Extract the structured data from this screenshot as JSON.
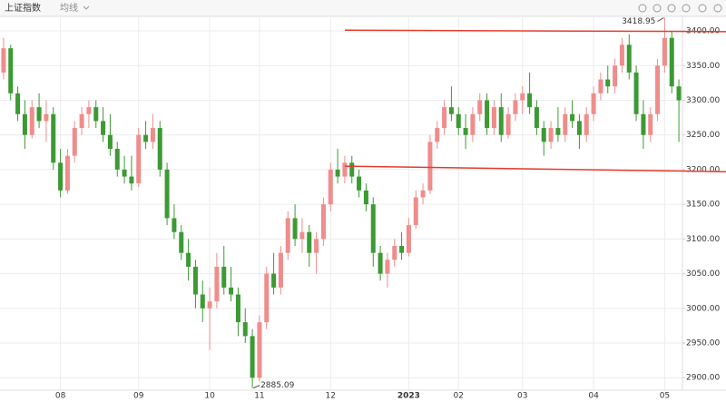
{
  "chart_data": {
    "type": "candlestick",
    "title": "上证指数",
    "indicator_menu": "均线",
    "up_color": "#f08c8c",
    "down_color": "#3c9a34",
    "grid": true,
    "ylim": [
      2882,
      3421
    ],
    "yticks": [
      {
        "value": 2900,
        "label": "2900.00"
      },
      {
        "value": 2950,
        "label": "2950.00"
      },
      {
        "value": 3000,
        "label": "3000.00"
      },
      {
        "value": 3050,
        "label": "3050.00"
      },
      {
        "value": 3100,
        "label": "3100.00"
      },
      {
        "value": 3150,
        "label": "3150.00"
      },
      {
        "value": 3200,
        "label": "3200.00"
      },
      {
        "value": 3250,
        "label": "3250.00"
      },
      {
        "value": 3300,
        "label": "3300.00"
      },
      {
        "value": 3350,
        "label": "3350.00"
      },
      {
        "value": 3400,
        "label": "3400.00"
      }
    ],
    "categories": [
      null,
      null,
      null,
      null,
      null,
      null,
      null,
      null,
      "08",
      null,
      null,
      null,
      null,
      null,
      null,
      null,
      null,
      null,
      null,
      "09",
      null,
      null,
      null,
      null,
      null,
      null,
      null,
      null,
      null,
      "10",
      null,
      null,
      null,
      null,
      null,
      null,
      "11",
      null,
      null,
      null,
      null,
      null,
      null,
      null,
      null,
      null,
      "12",
      null,
      null,
      null,
      null,
      null,
      null,
      null,
      null,
      null,
      null,
      "2023",
      null,
      null,
      null,
      null,
      null,
      null,
      "02",
      null,
      null,
      null,
      null,
      null,
      null,
      null,
      null,
      "03",
      null,
      null,
      null,
      null,
      null,
      null,
      null,
      null,
      null,
      "04",
      null,
      null,
      null,
      null,
      null,
      null,
      null,
      null,
      null,
      "05",
      null,
      null
    ],
    "series": [
      {
        "name": "上证指数",
        "values": [
          [
            3340,
            3390,
            3330,
            3375
          ],
          [
            3375,
            3380,
            3300,
            3310
          ],
          [
            3310,
            3320,
            3270,
            3280
          ],
          [
            3280,
            3300,
            3230,
            3250
          ],
          [
            3250,
            3300,
            3245,
            3290
          ],
          [
            3290,
            3310,
            3260,
            3270
          ],
          [
            3270,
            3300,
            3240,
            3280
          ],
          [
            3280,
            3290,
            3200,
            3210
          ],
          [
            3210,
            3230,
            3160,
            3170
          ],
          [
            3170,
            3230,
            3165,
            3220
          ],
          [
            3220,
            3270,
            3210,
            3260
          ],
          [
            3260,
            3290,
            3250,
            3280
          ],
          [
            3280,
            3300,
            3260,
            3290
          ],
          [
            3290,
            3300,
            3260,
            3270
          ],
          [
            3270,
            3290,
            3240,
            3250
          ],
          [
            3250,
            3280,
            3220,
            3230
          ],
          [
            3230,
            3240,
            3190,
            3200
          ],
          [
            3200,
            3220,
            3180,
            3190
          ],
          [
            3190,
            3220,
            3170,
            3180
          ],
          [
            3180,
            3260,
            3175,
            3250
          ],
          [
            3250,
            3270,
            3230,
            3240
          ],
          [
            3240,
            3280,
            3230,
            3260
          ],
          [
            3260,
            3270,
            3190,
            3200
          ],
          [
            3200,
            3210,
            3120,
            3130
          ],
          [
            3130,
            3150,
            3100,
            3110
          ],
          [
            3110,
            3120,
            3070,
            3080
          ],
          [
            3080,
            3100,
            3040,
            3060
          ],
          [
            3060,
            3070,
            3000,
            3020
          ],
          [
            3020,
            3040,
            2980,
            3000
          ],
          [
            3000,
            3030,
            2940,
            3010
          ],
          [
            3010,
            3080,
            3000,
            3060
          ],
          [
            3060,
            3090,
            3020,
            3030
          ],
          [
            3030,
            3060,
            3010,
            3020
          ],
          [
            3020,
            3030,
            2960,
            2980
          ],
          [
            2980,
            3000,
            2950,
            2960
          ],
          [
            2960,
            2970,
            2885.09,
            2900
          ],
          [
            2900,
            2990,
            2895,
            2980
          ],
          [
            2980,
            3060,
            2970,
            3050
          ],
          [
            3050,
            3080,
            3020,
            3030
          ],
          [
            3030,
            3090,
            3020,
            3080
          ],
          [
            3080,
            3140,
            3070,
            3130
          ],
          [
            3130,
            3150,
            3090,
            3100
          ],
          [
            3100,
            3130,
            3080,
            3110
          ],
          [
            3110,
            3120,
            3060,
            3080
          ],
          [
            3080,
            3110,
            3050,
            3100
          ],
          [
            3100,
            3160,
            3090,
            3150
          ],
          [
            3150,
            3210,
            3140,
            3200
          ],
          [
            3200,
            3230,
            3180,
            3190
          ],
          [
            3190,
            3220,
            3180,
            3210
          ],
          [
            3210,
            3220,
            3180,
            3190
          ],
          [
            3190,
            3200,
            3160,
            3170
          ],
          [
            3170,
            3180,
            3140,
            3150
          ],
          [
            3150,
            3160,
            3060,
            3080
          ],
          [
            3080,
            3090,
            3040,
            3050
          ],
          [
            3050,
            3080,
            3030,
            3070
          ],
          [
            3070,
            3100,
            3060,
            3090
          ],
          [
            3090,
            3110,
            3070,
            3080
          ],
          [
            3080,
            3130,
            3075,
            3120
          ],
          [
            3120,
            3170,
            3115,
            3160
          ],
          [
            3160,
            3180,
            3150,
            3170
          ],
          [
            3170,
            3250,
            3165,
            3240
          ],
          [
            3240,
            3270,
            3230,
            3260
          ],
          [
            3260,
            3300,
            3250,
            3290
          ],
          [
            3290,
            3320,
            3270,
            3280
          ],
          [
            3280,
            3290,
            3250,
            3260
          ],
          [
            3260,
            3280,
            3230,
            3250
          ],
          [
            3250,
            3290,
            3240,
            3280
          ],
          [
            3280,
            3310,
            3270,
            3300
          ],
          [
            3300,
            3310,
            3250,
            3260
          ],
          [
            3260,
            3300,
            3250,
            3290
          ],
          [
            3290,
            3310,
            3240,
            3250
          ],
          [
            3250,
            3290,
            3245,
            3280
          ],
          [
            3280,
            3310,
            3270,
            3300
          ],
          [
            3300,
            3320,
            3280,
            3310
          ],
          [
            3310,
            3340,
            3280,
            3290
          ],
          [
            3290,
            3300,
            3250,
            3260
          ],
          [
            3260,
            3270,
            3220,
            3240
          ],
          [
            3240,
            3270,
            3230,
            3260
          ],
          [
            3260,
            3290,
            3240,
            3250
          ],
          [
            3250,
            3290,
            3240,
            3280
          ],
          [
            3280,
            3300,
            3260,
            3270
          ],
          [
            3270,
            3280,
            3230,
            3250
          ],
          [
            3250,
            3290,
            3240,
            3280
          ],
          [
            3280,
            3320,
            3270,
            3310
          ],
          [
            3310,
            3340,
            3300,
            3330
          ],
          [
            3330,
            3350,
            3310,
            3320
          ],
          [
            3320,
            3360,
            3310,
            3350
          ],
          [
            3350,
            3390,
            3340,
            3380
          ],
          [
            3380,
            3395,
            3330,
            3340
          ],
          [
            3340,
            3350,
            3270,
            3280
          ],
          [
            3280,
            3300,
            3230,
            3250
          ],
          [
            3250,
            3290,
            3240,
            3280
          ],
          [
            3280,
            3360,
            3270,
            3350
          ],
          [
            3350,
            3418.95,
            3340,
            3390
          ],
          [
            3390,
            3400,
            3310,
            3320
          ],
          [
            3320,
            3330,
            3240,
            3300
          ]
        ]
      }
    ],
    "annotations": [
      {
        "candle": 93,
        "field": 1
      },
      {
        "candle": 35,
        "field": 2
      }
    ],
    "trend_lines": [
      {
        "color": "#e53b2e",
        "start_index": 48,
        "values": [
          3401,
          3399
        ]
      },
      {
        "color": "#e53b2e",
        "start_index": 48,
        "values": [
          3205,
          3197
        ]
      }
    ]
  }
}
